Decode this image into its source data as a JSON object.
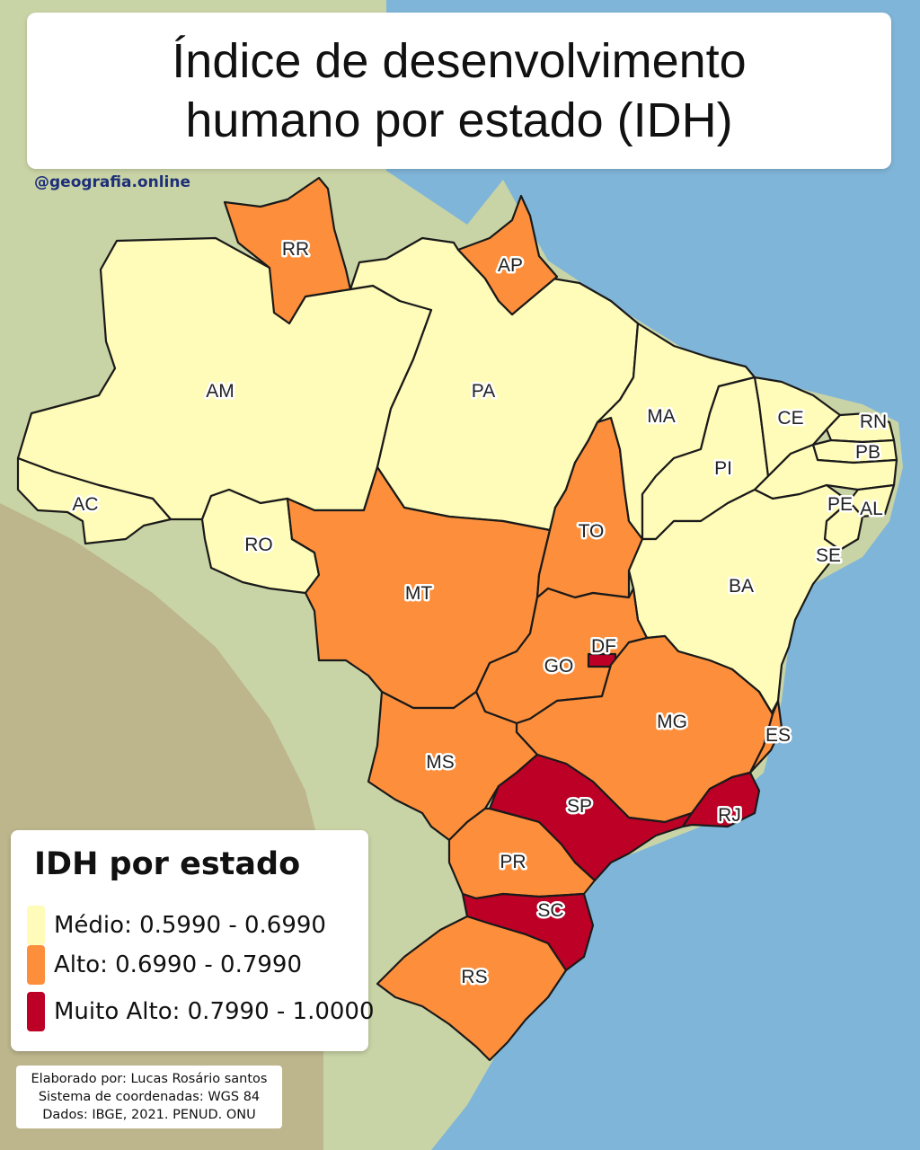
{
  "title": {
    "line1": "Índice de desenvolvimento",
    "line2": "humano por estado (IDH)"
  },
  "handle": "@geografia.online",
  "colors": {
    "ocean": "#7fb5d8",
    "terrain": "#c9d4a6",
    "medio": "#fffbb8",
    "alto": "#fd8f3c",
    "muito_alto": "#bd0026",
    "border": "#1a1a1a"
  },
  "legend": {
    "title": "IDH por estado",
    "items": [
      {
        "label": "Médio: 0.5990 - 0.6990",
        "category": "medio"
      },
      {
        "label": "Alto: 0.6990 - 0.7990",
        "category": "alto"
      },
      {
        "label": "Muito Alto: 0.7990 - 1.0000",
        "category": "muito_alto"
      }
    ]
  },
  "states": [
    {
      "code": "AC",
      "category": "medio"
    },
    {
      "code": "AM",
      "category": "medio"
    },
    {
      "code": "RR",
      "category": "alto"
    },
    {
      "code": "RO",
      "category": "medio"
    },
    {
      "code": "PA",
      "category": "medio"
    },
    {
      "code": "AP",
      "category": "alto"
    },
    {
      "code": "MT",
      "category": "alto"
    },
    {
      "code": "TO",
      "category": "alto"
    },
    {
      "code": "MA",
      "category": "medio"
    },
    {
      "code": "PI",
      "category": "medio"
    },
    {
      "code": "CE",
      "category": "medio"
    },
    {
      "code": "RN",
      "category": "medio"
    },
    {
      "code": "PB",
      "category": "medio"
    },
    {
      "code": "PE",
      "category": "medio"
    },
    {
      "code": "AL",
      "category": "medio"
    },
    {
      "code": "SE",
      "category": "medio"
    },
    {
      "code": "BA",
      "category": "medio"
    },
    {
      "code": "GO",
      "category": "alto"
    },
    {
      "code": "DF",
      "category": "muito_alto"
    },
    {
      "code": "MG",
      "category": "alto"
    },
    {
      "code": "ES",
      "category": "alto"
    },
    {
      "code": "MS",
      "category": "alto"
    },
    {
      "code": "SP",
      "category": "muito_alto"
    },
    {
      "code": "RJ",
      "category": "muito_alto"
    },
    {
      "code": "PR",
      "category": "alto"
    },
    {
      "code": "SC",
      "category": "muito_alto"
    },
    {
      "code": "RS",
      "category": "alto"
    }
  ],
  "credits": [
    "Elaborado por: Lucas Rosário santos",
    "Sistema de coordenadas: WGS 84",
    "Dados: IBGE, 2021. PENUD. ONU"
  ]
}
